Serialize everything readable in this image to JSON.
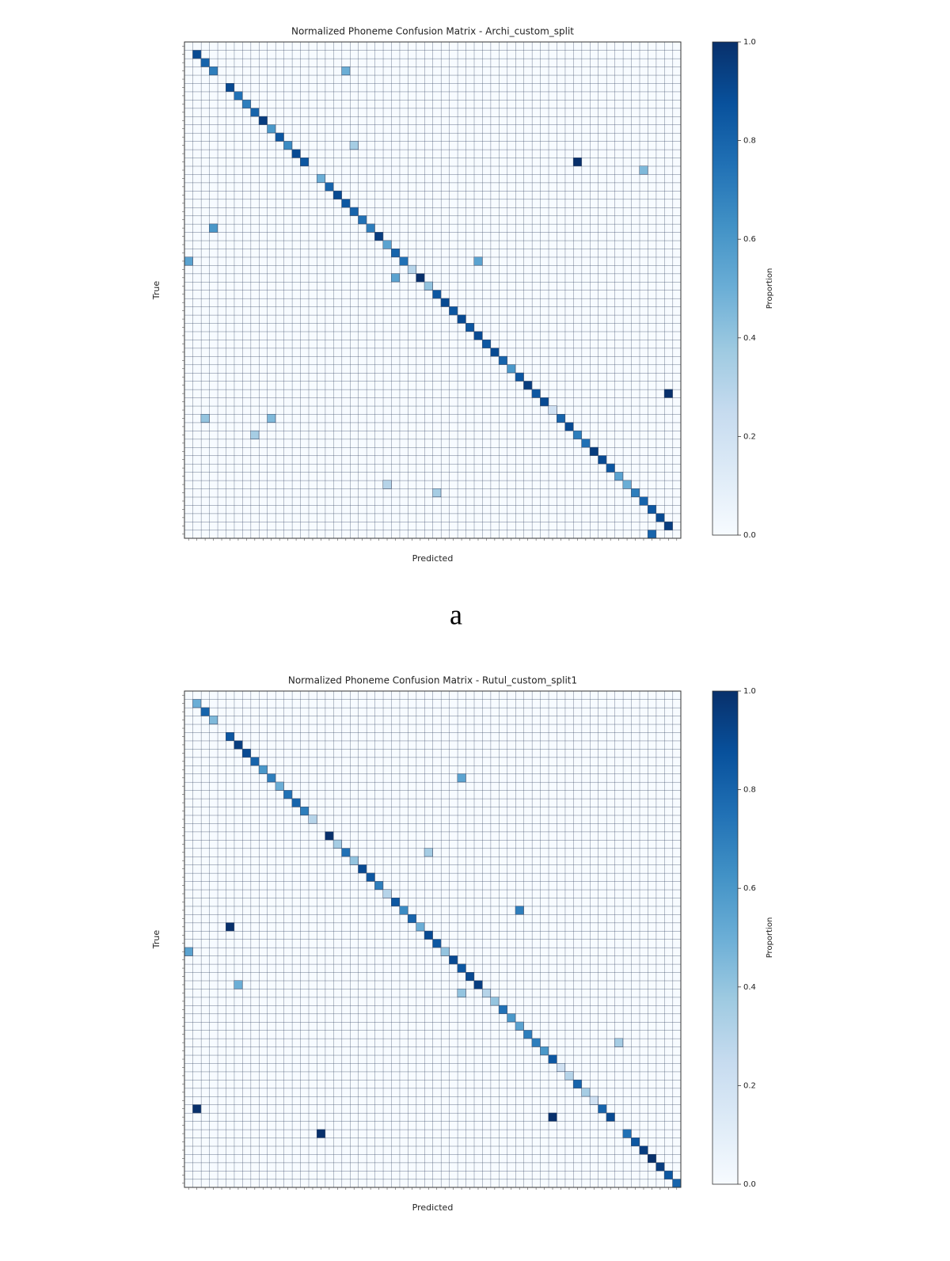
{
  "chart_data": [
    {
      "type": "heatmap",
      "title": "Normalized Phoneme Confusion Matrix - Archi_custom_split",
      "x_label": "Predicted",
      "y_label": "True",
      "colorbar_label": "Proportion",
      "colormap": "Blues",
      "xlim": [
        0,
        60
      ],
      "ylim": [
        0,
        60
      ],
      "clim": [
        0,
        1
      ],
      "cticks": [
        {
          "value": 0,
          "label": "0.0"
        },
        {
          "value": 0.2,
          "label": "0.2"
        },
        {
          "value": 0.4,
          "label": "0.4"
        },
        {
          "value": 0.6,
          "label": "0.6"
        },
        {
          "value": 0.8,
          "label": "0.8"
        },
        {
          "value": 1,
          "label": "1.0"
        }
      ],
      "x": [
        1,
        2,
        3,
        5,
        6,
        7,
        8,
        9,
        10,
        11,
        12,
        13,
        14,
        16,
        17,
        18,
        19,
        20,
        21,
        22,
        23,
        24,
        25,
        26,
        27,
        28,
        29,
        30,
        31,
        32,
        33,
        34,
        35,
        36,
        37,
        38,
        39,
        40,
        41,
        42,
        43,
        44,
        45,
        46,
        47,
        48,
        49,
        50,
        51,
        52,
        53,
        54,
        55,
        56,
        57,
        58,
        19,
        47,
        55,
        20,
        3,
        0,
        35,
        25,
        58,
        2,
        10,
        8,
        24,
        30,
        56
      ],
      "y": [
        1,
        2,
        3,
        5,
        6,
        7,
        8,
        9,
        10,
        11,
        12,
        13,
        14,
        16,
        17,
        18,
        19,
        20,
        21,
        22,
        23,
        24,
        25,
        26,
        27,
        28,
        29,
        30,
        31,
        32,
        33,
        34,
        35,
        36,
        37,
        38,
        39,
        40,
        41,
        42,
        43,
        44,
        45,
        46,
        47,
        48,
        49,
        50,
        51,
        52,
        53,
        54,
        55,
        56,
        57,
        58,
        3,
        14,
        15,
        12,
        22,
        26,
        26,
        28,
        42,
        45,
        45,
        47,
        53,
        54,
        59
      ],
      "values": [
        0.9,
        0.8,
        0.7,
        0.9,
        0.75,
        0.7,
        0.8,
        0.95,
        0.6,
        0.85,
        0.65,
        0.9,
        0.85,
        0.5,
        0.8,
        0.9,
        0.85,
        0.8,
        0.75,
        0.7,
        0.95,
        0.55,
        0.8,
        0.75,
        0.3,
        1.0,
        0.4,
        0.85,
        0.9,
        0.85,
        0.9,
        0.85,
        0.9,
        0.85,
        0.9,
        0.8,
        0.6,
        0.85,
        0.95,
        0.85,
        0.9,
        0.2,
        0.8,
        0.9,
        0.7,
        0.75,
        0.95,
        0.9,
        0.85,
        0.55,
        0.5,
        0.7,
        0.8,
        0.85,
        0.9,
        0.95,
        0.5,
        1.0,
        0.45,
        0.35,
        0.6,
        0.55,
        0.55,
        0.55,
        1.0,
        0.4,
        0.45,
        0.35,
        0.3,
        0.35,
        0.8
      ],
      "caption": "a"
    },
    {
      "type": "heatmap",
      "title": "Normalized Phoneme Confusion Matrix - Rutul_custom_split1",
      "x_label": "Predicted",
      "y_label": "True",
      "colorbar_label": "Proportion",
      "colormap": "Blues",
      "xlim": [
        0,
        60
      ],
      "ylim": [
        0,
        60
      ],
      "clim": [
        0,
        1
      ],
      "cticks": [
        {
          "value": 0,
          "label": "0.0"
        },
        {
          "value": 0.2,
          "label": "0.2"
        },
        {
          "value": 0.4,
          "label": "0.4"
        },
        {
          "value": 0.6,
          "label": "0.6"
        },
        {
          "value": 0.8,
          "label": "0.8"
        },
        {
          "value": 1,
          "label": "1.0"
        }
      ],
      "x": [
        1,
        2,
        3,
        5,
        6,
        7,
        8,
        9,
        10,
        11,
        12,
        13,
        14,
        15,
        17,
        18,
        19,
        20,
        21,
        22,
        23,
        24,
        25,
        26,
        27,
        28,
        29,
        30,
        31,
        32,
        33,
        34,
        35,
        36,
        37,
        38,
        39,
        40,
        41,
        42,
        43,
        44,
        45,
        46,
        47,
        48,
        49,
        50,
        51,
        53,
        54,
        55,
        56,
        57,
        58,
        59,
        33,
        40,
        5,
        0,
        6,
        33,
        52,
        1,
        44,
        16,
        29
      ],
      "y": [
        1,
        2,
        3,
        5,
        6,
        7,
        8,
        9,
        10,
        11,
        12,
        13,
        14,
        15,
        17,
        18,
        19,
        20,
        21,
        22,
        23,
        24,
        25,
        26,
        27,
        28,
        29,
        30,
        31,
        32,
        33,
        34,
        35,
        36,
        37,
        38,
        39,
        40,
        41,
        42,
        43,
        44,
        45,
        46,
        47,
        48,
        49,
        50,
        51,
        53,
        54,
        55,
        56,
        57,
        58,
        59,
        10,
        26,
        28,
        31,
        35,
        36,
        42,
        50,
        51,
        53,
        19
      ],
      "values": [
        0.5,
        0.8,
        0.45,
        0.85,
        0.95,
        0.9,
        0.8,
        0.6,
        0.7,
        0.5,
        0.75,
        0.8,
        0.7,
        0.3,
        1.0,
        0.35,
        0.75,
        0.4,
        0.9,
        0.85,
        0.7,
        0.3,
        0.85,
        0.65,
        0.8,
        0.5,
        0.9,
        0.85,
        0.4,
        0.9,
        0.85,
        0.9,
        0.95,
        0.3,
        0.4,
        0.75,
        0.6,
        0.55,
        0.7,
        0.7,
        0.6,
        0.85,
        0.2,
        0.3,
        0.8,
        0.35,
        0.2,
        0.8,
        0.9,
        0.75,
        0.85,
        0.95,
        1.0,
        0.95,
        0.85,
        0.8,
        0.55,
        0.7,
        1.0,
        0.55,
        0.5,
        0.4,
        0.35,
        1.0,
        1.0,
        1.0,
        0.35
      ]
    }
  ]
}
